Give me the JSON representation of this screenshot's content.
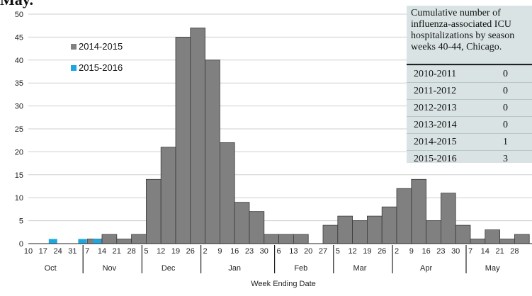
{
  "top_text": "May.",
  "chart_data": {
    "type": "bar",
    "xlabel": "Week Ending Date",
    "ylabel": "",
    "ylim": [
      0,
      50
    ],
    "yticks": [
      0,
      5,
      10,
      15,
      20,
      25,
      30,
      35,
      40,
      45,
      50
    ],
    "grid": true,
    "legend_position": "upper-left",
    "categories": [
      "10",
      "17",
      "24",
      "31",
      "7",
      "14",
      "21",
      "28",
      "5",
      "12",
      "19",
      "26",
      "2",
      "9",
      "16",
      "23",
      "30",
      "6",
      "13",
      "20",
      "27",
      "5",
      "12",
      "19",
      "26",
      "2",
      "9",
      "16",
      "23",
      "30",
      "7",
      "14",
      "21",
      "28"
    ],
    "months": [
      {
        "label": "Oct",
        "start": 0,
        "end": 3
      },
      {
        "label": "Nov",
        "start": 4,
        "end": 7
      },
      {
        "label": "Dec",
        "start": 8,
        "end": 11
      },
      {
        "label": "Jan",
        "start": 12,
        "end": 16
      },
      {
        "label": "Feb",
        "start": 17,
        "end": 20
      },
      {
        "label": "Mar",
        "start": 21,
        "end": 24
      },
      {
        "label": "Apr",
        "start": 25,
        "end": 29
      },
      {
        "label": "May",
        "start": 30,
        "end": 33
      }
    ],
    "series": [
      {
        "name": "2014-2015",
        "color": "#808080",
        "values": [
          0,
          0,
          0,
          0,
          1,
          2,
          1,
          2,
          14,
          21,
          45,
          47,
          40,
          22,
          9,
          7,
          2,
          2,
          2,
          0,
          4,
          6,
          5,
          6,
          8,
          12,
          14,
          5,
          11,
          4,
          1,
          3,
          1,
          2
        ]
      },
      {
        "name": "2015-2016",
        "color": "#1ca7e0",
        "values": [
          0,
          1,
          0,
          1,
          1,
          0,
          0,
          0,
          0,
          0,
          0,
          0,
          0,
          0,
          0,
          0,
          0,
          0,
          0,
          0,
          0,
          0,
          0,
          0,
          0,
          0,
          0,
          0,
          0,
          0,
          0,
          0,
          0,
          0
        ]
      }
    ]
  },
  "table": {
    "title_lines": [
      "Cumulative number of",
      "influenza-associated ICU",
      "hospitalizations by season",
      "weeks 40-44, Chicago."
    ],
    "rows": [
      {
        "season": "2010-2011",
        "count": "0"
      },
      {
        "season": "2011-2012",
        "count": "0"
      },
      {
        "season": "2012-2013",
        "count": "0"
      },
      {
        "season": "2013-2014",
        "count": "0"
      },
      {
        "season": "2014-2015",
        "count": "1"
      },
      {
        "season": "2015-2016",
        "count": "3"
      }
    ]
  }
}
